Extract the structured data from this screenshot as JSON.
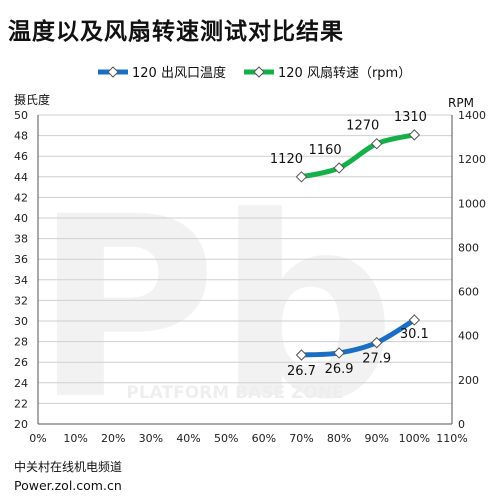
{
  "title": "温度以及风扇转速测试对比结果",
  "footer": {
    "source": "中关村在线机电频道",
    "site": "Power.zol.com.cn"
  },
  "watermark": {
    "text": "PLATFORM BASE ZONE",
    "logo": "Pb"
  },
  "chart_data": {
    "type": "line",
    "x_axis": {
      "min": 0,
      "max": 110,
      "step": 10,
      "tick_labels": [
        "0%",
        "10%",
        "20%",
        "30%",
        "40%",
        "50%",
        "60%",
        "70%",
        "80%",
        "90%",
        "100%",
        "110%"
      ]
    },
    "y_axis_left": {
      "label": "摄氏度",
      "min": 20,
      "max": 50,
      "step": 2
    },
    "y_axis_right": {
      "label": "RPM",
      "min": 0,
      "max": 1400,
      "step": 200
    },
    "grid": true,
    "legend": {
      "position": "top",
      "entries": [
        "120 出风口温度",
        "120 风扇转速（rpm）"
      ]
    },
    "series": [
      {
        "name": "120 出风口温度",
        "axis": "left",
        "color": "#1a6fc4",
        "x": [
          70,
          80,
          90,
          100
        ],
        "values": [
          26.7,
          26.9,
          27.9,
          30.1
        ],
        "labels": [
          "26.7",
          "26.9",
          "27.9",
          "30.1"
        ]
      },
      {
        "name": "120 风扇转速（rpm）",
        "axis": "right",
        "color": "#16b04a",
        "x": [
          70,
          80,
          90,
          100
        ],
        "values": [
          1120,
          1160,
          1270,
          1310
        ],
        "labels": [
          "1120",
          "1160",
          "1270",
          "1310"
        ]
      }
    ]
  }
}
